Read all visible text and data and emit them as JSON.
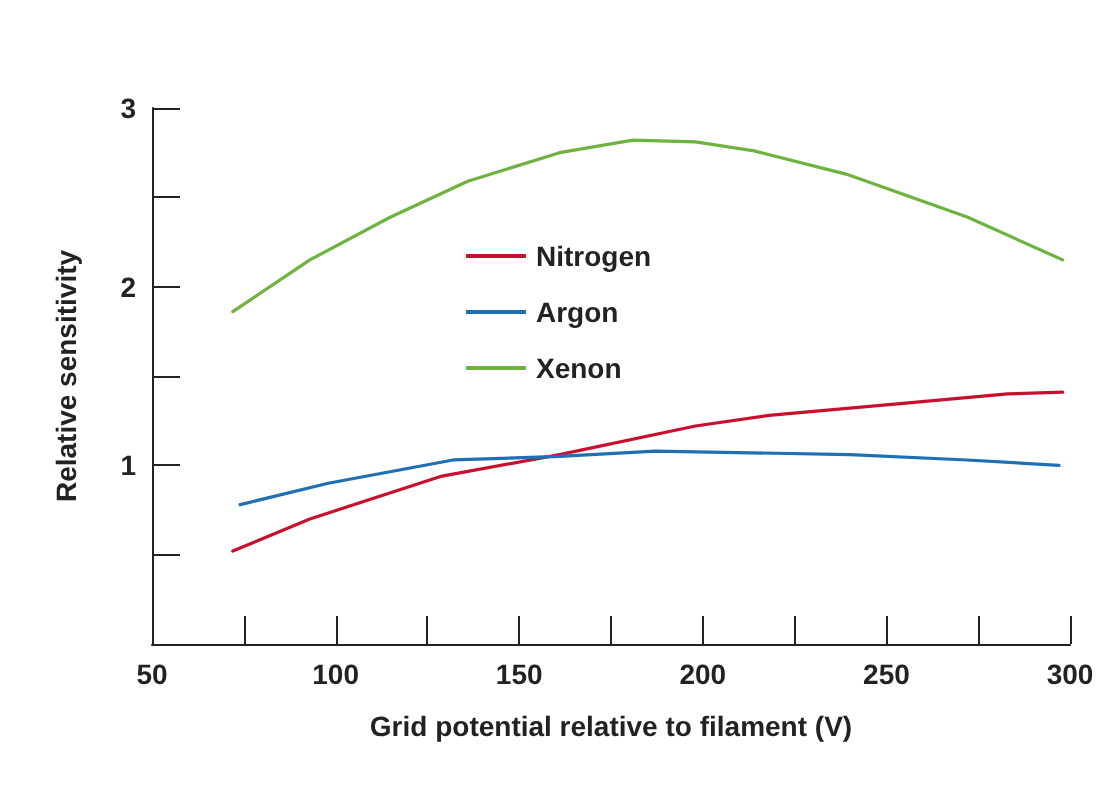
{
  "chart_data": {
    "type": "line",
    "xlabel": "Grid potential relative to filament (V)",
    "ylabel": "Relative sensitivity",
    "xlim": [
      50,
      300
    ],
    "xticks": [
      50,
      {
        "value": 75,
        "label": null
      },
      100,
      {
        "value": 125,
        "label": null
      },
      150,
      {
        "value": 175,
        "label": null
      },
      200,
      {
        "value": 225,
        "label": null
      },
      250,
      {
        "value": 275,
        "label": null
      },
      300
    ],
    "ylim": [
      0,
      3
    ],
    "yticks": [
      {
        "value": 0.5,
        "label": null
      },
      1,
      {
        "value": 1.5,
        "label": null
      },
      2,
      {
        "value": 2.5,
        "label": null
      },
      3
    ],
    "legend": "top",
    "grid": false,
    "marker": "none",
    "line_style": "solid",
    "series": [
      {
        "name": "Nitrogen",
        "color": "#c8102e",
        "x": [
          72,
          93,
          129,
          161,
          198,
          218,
          256,
          283,
          298
        ],
        "values": [
          0.52,
          0.7,
          0.94,
          1.06,
          1.22,
          1.28,
          1.35,
          1.4,
          1.41
        ]
      },
      {
        "name": "Argon",
        "color": "#1f6fb5",
        "x": [
          74,
          98,
          132,
          161,
          187,
          240,
          272,
          297
        ],
        "values": [
          0.78,
          0.9,
          1.03,
          1.05,
          1.08,
          1.06,
          1.03,
          1.0
        ]
      },
      {
        "name": "Xenon",
        "color": "#6db33f",
        "x": [
          72,
          93,
          115,
          136,
          161,
          181,
          198,
          214,
          239,
          272,
          298
        ],
        "values": [
          1.86,
          2.15,
          2.39,
          2.59,
          2.75,
          2.82,
          2.81,
          2.76,
          2.63,
          2.39,
          2.15
        ]
      }
    ]
  }
}
